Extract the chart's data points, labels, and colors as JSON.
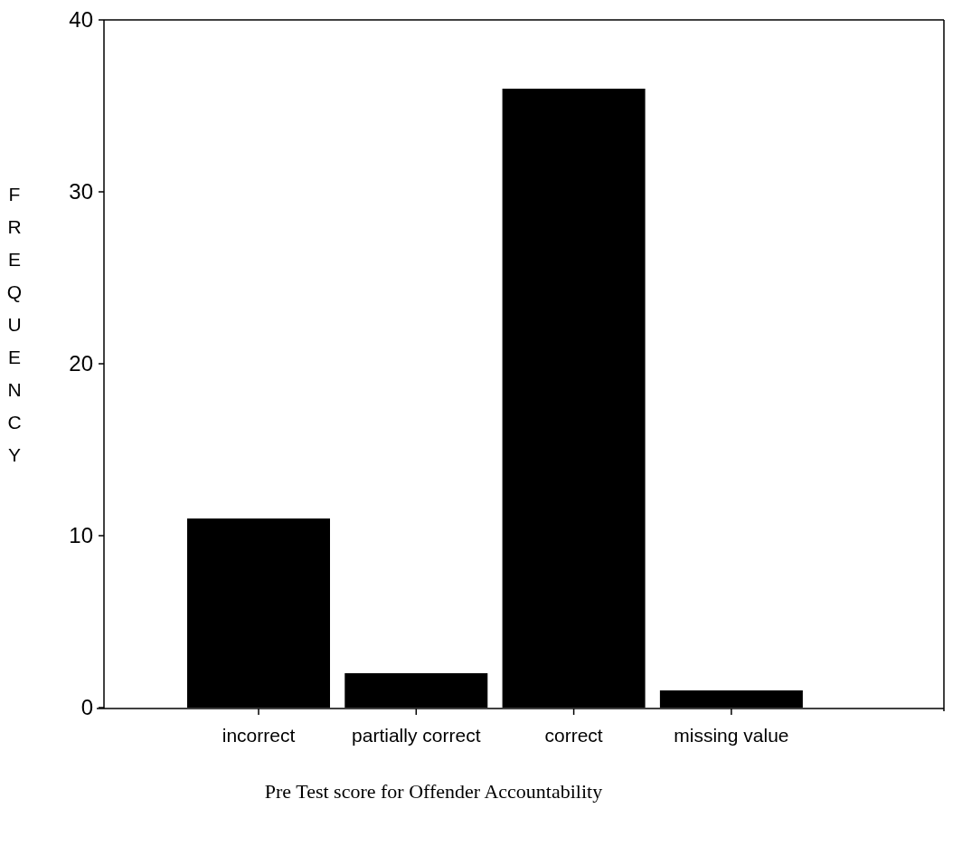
{
  "chart_data": {
    "type": "bar",
    "categories": [
      "incorrect",
      "partially correct",
      "correct",
      "missing value"
    ],
    "values": [
      11,
      2,
      36,
      1
    ],
    "color": "#000000",
    "ylim": [
      0,
      40
    ],
    "yticks": [
      0,
      10,
      20,
      30,
      40
    ],
    "xlabel": "Pre Test score for Offender Accountability",
    "ylabel": "FREQUENCY",
    "grid": false
  }
}
